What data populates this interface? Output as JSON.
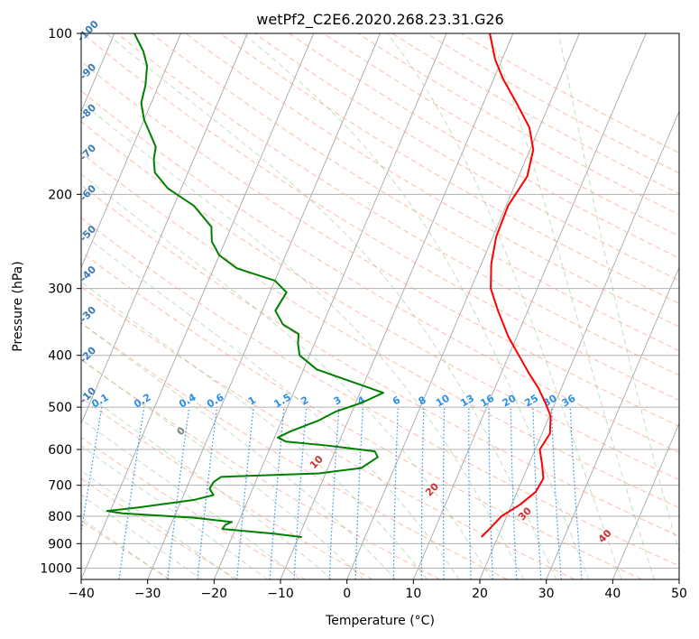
{
  "chart_data": {
    "type": "line",
    "subtype": "skew-t log-p diagram",
    "title": "wetPf2_C2E6.2020.268.23.31.G26",
    "xlabel": "Temperature (°C)",
    "ylabel": "Pressure (hPa)",
    "xlim": [
      -40,
      50
    ],
    "ylim": [
      1050,
      100
    ],
    "y_scale": "log",
    "x_ticks": [
      -40,
      -30,
      -20,
      -10,
      0,
      10,
      20,
      30,
      40,
      50
    ],
    "y_ticks": [
      100,
      200,
      300,
      400,
      500,
      600,
      700,
      800,
      900,
      1000
    ],
    "grid": true,
    "series": [
      {
        "color": "#ff0000",
        "points": [
          [
            17.5,
            875
          ],
          [
            18.1,
            850
          ],
          [
            19.2,
            800
          ],
          [
            21.3,
            760
          ],
          [
            22.8,
            720
          ],
          [
            23.1,
            680
          ],
          [
            22.0,
            640
          ],
          [
            20.7,
            600
          ],
          [
            21.2,
            560
          ],
          [
            20.2,
            520
          ],
          [
            18.5,
            490
          ],
          [
            16.5,
            460
          ],
          [
            14.0,
            430
          ],
          [
            11.5,
            400
          ],
          [
            8.8,
            370
          ],
          [
            5.5,
            330
          ],
          [
            3.0,
            300
          ],
          [
            1.5,
            270
          ],
          [
            0.5,
            240
          ],
          [
            0.3,
            210
          ],
          [
            1.3,
            185
          ],
          [
            0.5,
            165
          ],
          [
            -1.5,
            150
          ],
          [
            -5.0,
            135
          ],
          [
            -8.5,
            122
          ],
          [
            -11.0,
            112
          ],
          [
            -13.5,
            100
          ]
        ]
      },
      {
        "color": "#008000",
        "points": [
          [
            -9.5,
            875
          ],
          [
            -14.0,
            862
          ],
          [
            -22.0,
            845
          ],
          [
            -21.8,
            830
          ],
          [
            -21.0,
            820
          ],
          [
            -27.0,
            805
          ],
          [
            -38.0,
            790
          ],
          [
            -40.5,
            782
          ],
          [
            -36.0,
            770
          ],
          [
            -28.0,
            745
          ],
          [
            -25.5,
            730
          ],
          [
            -26.5,
            710
          ],
          [
            -26.3,
            690
          ],
          [
            -25.5,
            675
          ],
          [
            -11.0,
            665
          ],
          [
            -5.0,
            650
          ],
          [
            -3.2,
            620
          ],
          [
            -4.0,
            605
          ],
          [
            -11.5,
            590
          ],
          [
            -18.0,
            580
          ],
          [
            -19.5,
            570
          ],
          [
            -18.0,
            555
          ],
          [
            -14.5,
            530
          ],
          [
            -12.5,
            510
          ],
          [
            -9.0,
            490
          ],
          [
            -6.5,
            470
          ],
          [
            -11.5,
            450
          ],
          [
            -18.0,
            425
          ],
          [
            -21.5,
            400
          ],
          [
            -22.5,
            380
          ],
          [
            -23.0,
            365
          ],
          [
            -26.0,
            350
          ],
          [
            -28.0,
            330
          ],
          [
            -27.5,
            305
          ],
          [
            -30.0,
            290
          ],
          [
            -36.5,
            275
          ],
          [
            -40.0,
            260
          ],
          [
            -42.0,
            245
          ],
          [
            -43.0,
            230
          ],
          [
            -47.0,
            210
          ],
          [
            -52.0,
            195
          ],
          [
            -55.0,
            182
          ],
          [
            -56.0,
            172
          ],
          [
            -56.5,
            163
          ],
          [
            -58.0,
            155
          ],
          [
            -60.0,
            145
          ],
          [
            -61.5,
            135
          ],
          [
            -62.0,
            125
          ],
          [
            -63.0,
            115
          ],
          [
            -64.5,
            108
          ],
          [
            -67.0,
            100
          ]
        ]
      }
    ],
    "dry_adiabat_labels": [
      "-100",
      "-90",
      "-80",
      "-70",
      "-60",
      "-50",
      "-40",
      "-30",
      "-20",
      "-10"
    ],
    "mixing_ratio_labels": [
      "0.1",
      "0.2",
      "0.4",
      "0.6",
      "1",
      "1.5",
      "2",
      "3",
      "4",
      "6",
      "8",
      "10",
      "13",
      "16",
      "20",
      "25",
      "30",
      "36"
    ],
    "moist_adiabat_labels": [
      "0",
      "10",
      "20",
      "30",
      "40"
    ]
  }
}
